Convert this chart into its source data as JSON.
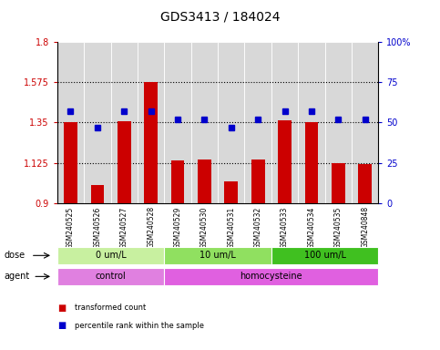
{
  "title": "GDS3413 / 184024",
  "samples": [
    "GSM240525",
    "GSM240526",
    "GSM240527",
    "GSM240528",
    "GSM240529",
    "GSM240530",
    "GSM240531",
    "GSM240532",
    "GSM240533",
    "GSM240534",
    "GSM240535",
    "GSM240848"
  ],
  "bar_values": [
    1.35,
    1.0,
    1.355,
    1.575,
    1.14,
    1.145,
    1.02,
    1.145,
    1.36,
    1.35,
    1.125,
    1.12
  ],
  "dot_values": [
    57,
    47,
    57,
    57,
    52,
    52,
    47,
    52,
    57,
    57,
    52,
    52
  ],
  "bar_color": "#cc0000",
  "dot_color": "#0000cc",
  "ylim_left": [
    0.9,
    1.8
  ],
  "ylim_right": [
    0,
    100
  ],
  "yticks_left": [
    0.9,
    1.125,
    1.35,
    1.575,
    1.8
  ],
  "yticks_right": [
    0,
    25,
    50,
    75,
    100
  ],
  "ytick_labels_left": [
    "0.9",
    "1.125",
    "1.35",
    "1.575",
    "1.8"
  ],
  "ytick_labels_right": [
    "0",
    "25",
    "50",
    "75",
    "100%"
  ],
  "hlines": [
    1.125,
    1.35,
    1.575
  ],
  "dose_groups": [
    {
      "label": "0 um/L",
      "start": 0,
      "end": 3,
      "color": "#c8f0a0"
    },
    {
      "label": "10 um/L",
      "start": 4,
      "end": 7,
      "color": "#90e060"
    },
    {
      "label": "100 um/L",
      "start": 8,
      "end": 11,
      "color": "#40c020"
    }
  ],
  "agent_groups": [
    {
      "label": "control",
      "start": 0,
      "end": 3,
      "color": "#e080e0"
    },
    {
      "label": "homocysteine",
      "start": 4,
      "end": 11,
      "color": "#e060e0"
    }
  ],
  "legend_items": [
    {
      "label": "transformed count",
      "color": "#cc0000"
    },
    {
      "label": "percentile rank within the sample",
      "color": "#0000cc"
    }
  ],
  "dose_label": "dose",
  "agent_label": "agent",
  "bg_color": "#d8d8d8"
}
